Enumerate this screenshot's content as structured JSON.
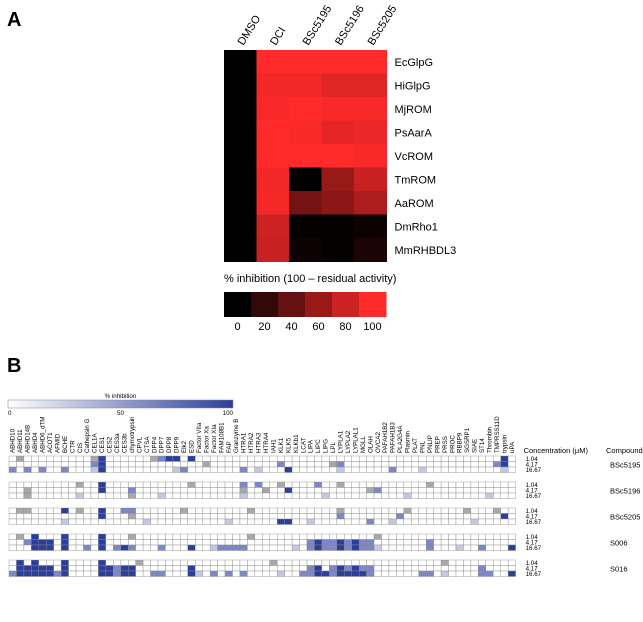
{
  "panel_a": {
    "letter": "A"
  },
  "panel_b": {
    "letter": "B"
  },
  "chart_data": [
    {
      "type": "heatmap",
      "title": "",
      "columns": [
        "DMSO",
        "DCI",
        "BSc5195",
        "BSc5196",
        "BSc5205"
      ],
      "rows": [
        "EcGlpG",
        "HiGlpG",
        "MjROM",
        "PsAarA",
        "VcROM",
        "TmROM",
        "AaROM",
        "DmRho1",
        "MmRHBDL3"
      ],
      "values": [
        [
          0,
          100,
          100,
          100,
          100
        ],
        [
          0,
          95,
          95,
          88,
          88
        ],
        [
          0,
          98,
          100,
          98,
          98
        ],
        [
          0,
          100,
          98,
          90,
          92
        ],
        [
          0,
          100,
          100,
          100,
          98
        ],
        [
          0,
          95,
          0,
          60,
          78
        ],
        [
          0,
          96,
          45,
          55,
          68
        ],
        [
          0,
          80,
          2,
          2,
          5
        ],
        [
          0,
          78,
          5,
          2,
          10
        ]
      ],
      "colorbar": {
        "label": "% inhibition (100 – residual activity)",
        "ticks": [
          "0",
          "20",
          "40",
          "60",
          "80",
          "100"
        ],
        "low_color": "#000000",
        "high_color": "#ff2a2a"
      }
    },
    {
      "type": "heatmap",
      "scale_label": "% inhibition",
      "scale_ticks": [
        "0",
        "50",
        "100"
      ],
      "low_color": "#ffffff",
      "high_color": "#2c3e9c",
      "concentration_header": "Concentration (µM)",
      "compound_header": "Compound",
      "concentrations": [
        "1.04",
        "4.17",
        "16.67"
      ],
      "compounds": [
        "BSc5195",
        "BSc5196",
        "BSc5205",
        "S006",
        "S016"
      ],
      "enzymes": [
        "ABHD10",
        "ABHD11",
        "ABHD14B",
        "ABHD4",
        "ABHD6_dTM",
        "ACOT1",
        "AFMID",
        "BCHE",
        "CTR",
        "CtS",
        "Cathepsin G",
        "CEL1A",
        "CES1",
        "CES2",
        "CES3a",
        "CES3b",
        "chymotrypsin",
        "CPVL",
        "CTSA",
        "DPP4",
        "DPP7",
        "DPP8",
        "DPP9",
        "Elk2",
        "ESD",
        "Factor VIIa",
        "Factor Xa",
        "Factor XIa",
        "FAM108B1",
        "FAP",
        "Granzyme B",
        "HTRA1",
        "HTRA2",
        "HTRA3",
        "HTRA4",
        "IAH1",
        "KLK1",
        "KLK5",
        "KLKb1",
        "LCAT",
        "LIPA",
        "LIPC",
        "LIPG",
        "LPL",
        "LYPLA1",
        "LYPLA2",
        "LYPLAL1",
        "MGLL",
        "OLAH",
        "OVCA2",
        "PAFAH1B2",
        "PAFAH1B3",
        "PLA2G4A",
        "Plasmin",
        "PLAT",
        "PNL",
        "PNLIP",
        "PREP",
        "PRSS",
        "PROC",
        "RBBP9",
        "SGSRP1",
        "SIAE",
        "ST14",
        "Thrombin",
        "TMPRSS11D",
        "trypsin",
        "uPA"
      ],
      "strong": {
        "BSc5195": [
          [
            12,
            0
          ],
          [
            12,
            1
          ],
          [
            12,
            2
          ],
          [
            21,
            0
          ],
          [
            22,
            0
          ],
          [
            24,
            0
          ],
          [
            37,
            2
          ],
          [
            66,
            0
          ],
          [
            66,
            1
          ]
        ],
        "BSc5196": [
          [
            12,
            0
          ],
          [
            37,
            1
          ],
          [
            12,
            1
          ]
        ],
        "BSc5205": [
          [
            7,
            0
          ],
          [
            36,
            2
          ],
          [
            37,
            2
          ],
          [
            12,
            0
          ],
          [
            12,
            1
          ],
          [
            66,
            1
          ]
        ],
        "S006": [
          [
            3,
            0
          ],
          [
            3,
            1
          ],
          [
            3,
            2
          ],
          [
            4,
            1
          ],
          [
            4,
            2
          ],
          [
            5,
            1
          ],
          [
            5,
            2
          ],
          [
            7,
            0
          ],
          [
            7,
            1
          ],
          [
            7,
            2
          ],
          [
            12,
            0
          ],
          [
            12,
            1
          ],
          [
            12,
            2
          ],
          [
            15,
            2
          ],
          [
            24,
            2
          ],
          [
            41,
            1
          ],
          [
            41,
            2
          ],
          [
            44,
            1
          ],
          [
            44,
            2
          ],
          [
            46,
            1
          ],
          [
            46,
            2
          ],
          [
            67,
            2
          ]
        ],
        "S016": [
          [
            1,
            0
          ],
          [
            1,
            1
          ],
          [
            1,
            2
          ],
          [
            2,
            1
          ],
          [
            2,
            2
          ],
          [
            3,
            0
          ],
          [
            3,
            1
          ],
          [
            3,
            2
          ],
          [
            4,
            1
          ],
          [
            4,
            2
          ],
          [
            5,
            1
          ],
          [
            5,
            2
          ],
          [
            7,
            0
          ],
          [
            7,
            1
          ],
          [
            7,
            2
          ],
          [
            12,
            0
          ],
          [
            12,
            1
          ],
          [
            12,
            2
          ],
          [
            13,
            1
          ],
          [
            13,
            2
          ],
          [
            15,
            1
          ],
          [
            15,
            2
          ],
          [
            16,
            1
          ],
          [
            16,
            2
          ],
          [
            24,
            1
          ],
          [
            24,
            2
          ],
          [
            41,
            1
          ],
          [
            41,
            2
          ],
          [
            42,
            2
          ],
          [
            44,
            1
          ],
          [
            44,
            2
          ],
          [
            45,
            2
          ],
          [
            46,
            1
          ],
          [
            46,
            2
          ],
          [
            47,
            2
          ],
          [
            67,
            2
          ]
        ]
      },
      "medium": {
        "BSc5195": [
          [
            0,
            2
          ],
          [
            2,
            2
          ],
          [
            4,
            2
          ],
          [
            7,
            2
          ],
          [
            11,
            1
          ],
          [
            20,
            0
          ],
          [
            23,
            2
          ],
          [
            31,
            2
          ],
          [
            36,
            1
          ],
          [
            44,
            1
          ],
          [
            51,
            2
          ],
          [
            65,
            1
          ]
        ],
        "BSc5196": [
          [
            16,
            1
          ],
          [
            31,
            0
          ],
          [
            33,
            0
          ],
          [
            41,
            0
          ],
          [
            49,
            1
          ]
        ],
        "BSc5205": [
          [
            15,
            0
          ],
          [
            16,
            0
          ],
          [
            44,
            1
          ],
          [
            48,
            2
          ],
          [
            52,
            1
          ]
        ],
        "S006": [
          [
            2,
            1
          ],
          [
            10,
            2
          ],
          [
            14,
            2
          ],
          [
            16,
            2
          ],
          [
            20,
            2
          ],
          [
            28,
            2
          ],
          [
            29,
            2
          ],
          [
            30,
            2
          ],
          [
            31,
            2
          ],
          [
            40,
            1
          ],
          [
            40,
            2
          ],
          [
            42,
            1
          ],
          [
            42,
            2
          ],
          [
            43,
            1
          ],
          [
            43,
            2
          ],
          [
            45,
            1
          ],
          [
            45,
            2
          ],
          [
            47,
            1
          ],
          [
            47,
            2
          ],
          [
            48,
            1
          ],
          [
            48,
            2
          ],
          [
            56,
            1
          ],
          [
            56,
            2
          ],
          [
            63,
            2
          ]
        ],
        "S016": [
          [
            0,
            2
          ],
          [
            6,
            2
          ],
          [
            14,
            1
          ],
          [
            14,
            2
          ],
          [
            19,
            2
          ],
          [
            20,
            2
          ],
          [
            27,
            2
          ],
          [
            29,
            2
          ],
          [
            31,
            2
          ],
          [
            39,
            2
          ],
          [
            40,
            1
          ],
          [
            40,
            2
          ],
          [
            43,
            1
          ],
          [
            43,
            2
          ],
          [
            45,
            1
          ],
          [
            47,
            1
          ],
          [
            48,
            1
          ],
          [
            48,
            2
          ],
          [
            55,
            2
          ],
          [
            56,
            2
          ],
          [
            63,
            1
          ],
          [
            63,
            2
          ],
          [
            64,
            2
          ]
        ]
      },
      "gray": {
        "BSc5195": [
          [
            1,
            0
          ],
          [
            11,
            0
          ],
          [
            19,
            0
          ],
          [
            26,
            1
          ],
          [
            43,
            1
          ]
        ],
        "BSc5196": [
          [
            2,
            1
          ],
          [
            2,
            2
          ],
          [
            9,
            0
          ],
          [
            16,
            2
          ],
          [
            24,
            0
          ],
          [
            31,
            1
          ],
          [
            34,
            1
          ],
          [
            36,
            0
          ],
          [
            44,
            0
          ],
          [
            48,
            1
          ],
          [
            56,
            0
          ]
        ],
        "BSc5205": [
          [
            1,
            0
          ],
          [
            2,
            0
          ],
          [
            9,
            0
          ],
          [
            16,
            1
          ],
          [
            23,
            0
          ],
          [
            32,
            0
          ],
          [
            44,
            0
          ],
          [
            53,
            0
          ],
          [
            61,
            0
          ],
          [
            65,
            0
          ]
        ],
        "S006": [
          [
            1,
            0
          ],
          [
            16,
            0
          ],
          [
            32,
            0
          ],
          [
            49,
            0
          ]
        ],
        "S016": [
          [
            17,
            0
          ],
          [
            35,
            0
          ],
          [
            58,
            0
          ]
        ]
      }
    }
  ]
}
